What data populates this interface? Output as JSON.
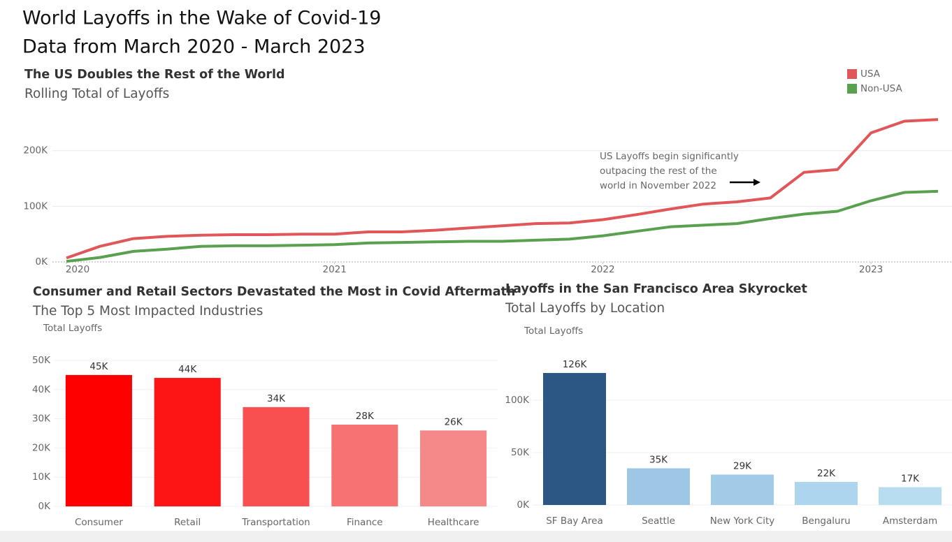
{
  "title": [
    "World Layoffs in the Wake of Covid-19",
    "Data from March 2020 - March 2023"
  ],
  "chart_data": [
    {
      "type": "line",
      "title": "The US Doubles the Rest of the World",
      "subtitle": "Rolling Total of Layoffs",
      "x": [
        2020,
        2020.125,
        2020.25,
        2020.375,
        2020.5,
        2020.625,
        2020.75,
        2020.875,
        2021,
        2021.125,
        2021.25,
        2021.375,
        2021.5,
        2021.625,
        2021.75,
        2021.875,
        2022,
        2022.125,
        2022.25,
        2022.375,
        2022.5,
        2022.625,
        2022.75,
        2022.875,
        2023,
        2023.125,
        2023.25
      ],
      "series": [
        {
          "name": "USA",
          "color": "#e15759",
          "values": [
            7000,
            28000,
            42000,
            46000,
            48000,
            49000,
            49000,
            50000,
            50000,
            54000,
            54000,
            57000,
            61000,
            65000,
            69000,
            70000,
            76000,
            85000,
            95000,
            104000,
            108000,
            115000,
            161000,
            166000,
            232000,
            253000,
            256000
          ]
        },
        {
          "name": "Non-USA",
          "color": "#59a14f",
          "values": [
            1000,
            8000,
            19000,
            23000,
            28000,
            29000,
            29000,
            30000,
            31000,
            34000,
            35000,
            36000,
            37000,
            37000,
            39000,
            41000,
            47000,
            55000,
            63000,
            66000,
            69000,
            78000,
            86000,
            91000,
            110000,
            125000,
            127000
          ]
        }
      ],
      "xlim": [
        2020,
        2023.25
      ],
      "xticks": [
        2020,
        2021,
        2022,
        2023
      ],
      "ylim": [
        0,
        270000
      ],
      "yticks": [
        {
          "value": 0,
          "label": "0K"
        },
        {
          "value": 100000,
          "label": "100K"
        },
        {
          "value": 200000,
          "label": "200K"
        }
      ],
      "grid": true,
      "legend": "top-right",
      "annotation": [
        "US Layoffs begin significantly",
        "outpacing the rest of the",
        "world in November 2022"
      ]
    },
    {
      "type": "bar",
      "title": "Consumer and Retail Sectors Devastated the Most in Covid Aftermath",
      "subtitle": "The Top 5 Most Impacted Industries",
      "y_label": "Total Layoffs",
      "categories": [
        "Consumer",
        "Retail",
        "Transportation",
        "Finance",
        "Healthcare"
      ],
      "values": [
        45000,
        44000,
        34000,
        28000,
        26000
      ],
      "value_labels": [
        "45K",
        "44K",
        "34K",
        "28K",
        "26K"
      ],
      "colors": [
        "#ff0000",
        "#fd1414",
        "#f85050",
        "#f77272",
        "#f58888"
      ],
      "ylim": [
        0,
        50000
      ],
      "yticks": [
        {
          "value": 0,
          "label": "0K"
        },
        {
          "value": 10000,
          "label": "10K"
        },
        {
          "value": 20000,
          "label": "20K"
        },
        {
          "value": 30000,
          "label": "30K"
        },
        {
          "value": 40000,
          "label": "40K"
        },
        {
          "value": 50000,
          "label": "50K"
        }
      ],
      "grid": true
    },
    {
      "type": "bar",
      "title": "Layoffs in the San Francisco Area Skyrocket",
      "subtitle": "Total Layoffs by Location",
      "y_label": "Total Layoffs",
      "categories": [
        "SF Bay Area",
        "Seattle",
        "New York City",
        "Bengaluru",
        "Amsterdam"
      ],
      "values": [
        126000,
        35000,
        29000,
        22000,
        17000
      ],
      "value_labels": [
        "126K",
        "35K",
        "29K",
        "22K",
        "17K"
      ],
      "colors": [
        "#2c5784",
        "#9dc7e5",
        "#a3cbe8",
        "#add5ee",
        "#b8ddf0"
      ],
      "ylim": [
        0,
        150000
      ],
      "yticks": [
        {
          "value": 0,
          "label": "0K"
        },
        {
          "value": 50000,
          "label": "50K"
        },
        {
          "value": 100000,
          "label": "100K"
        }
      ],
      "grid": true
    }
  ]
}
